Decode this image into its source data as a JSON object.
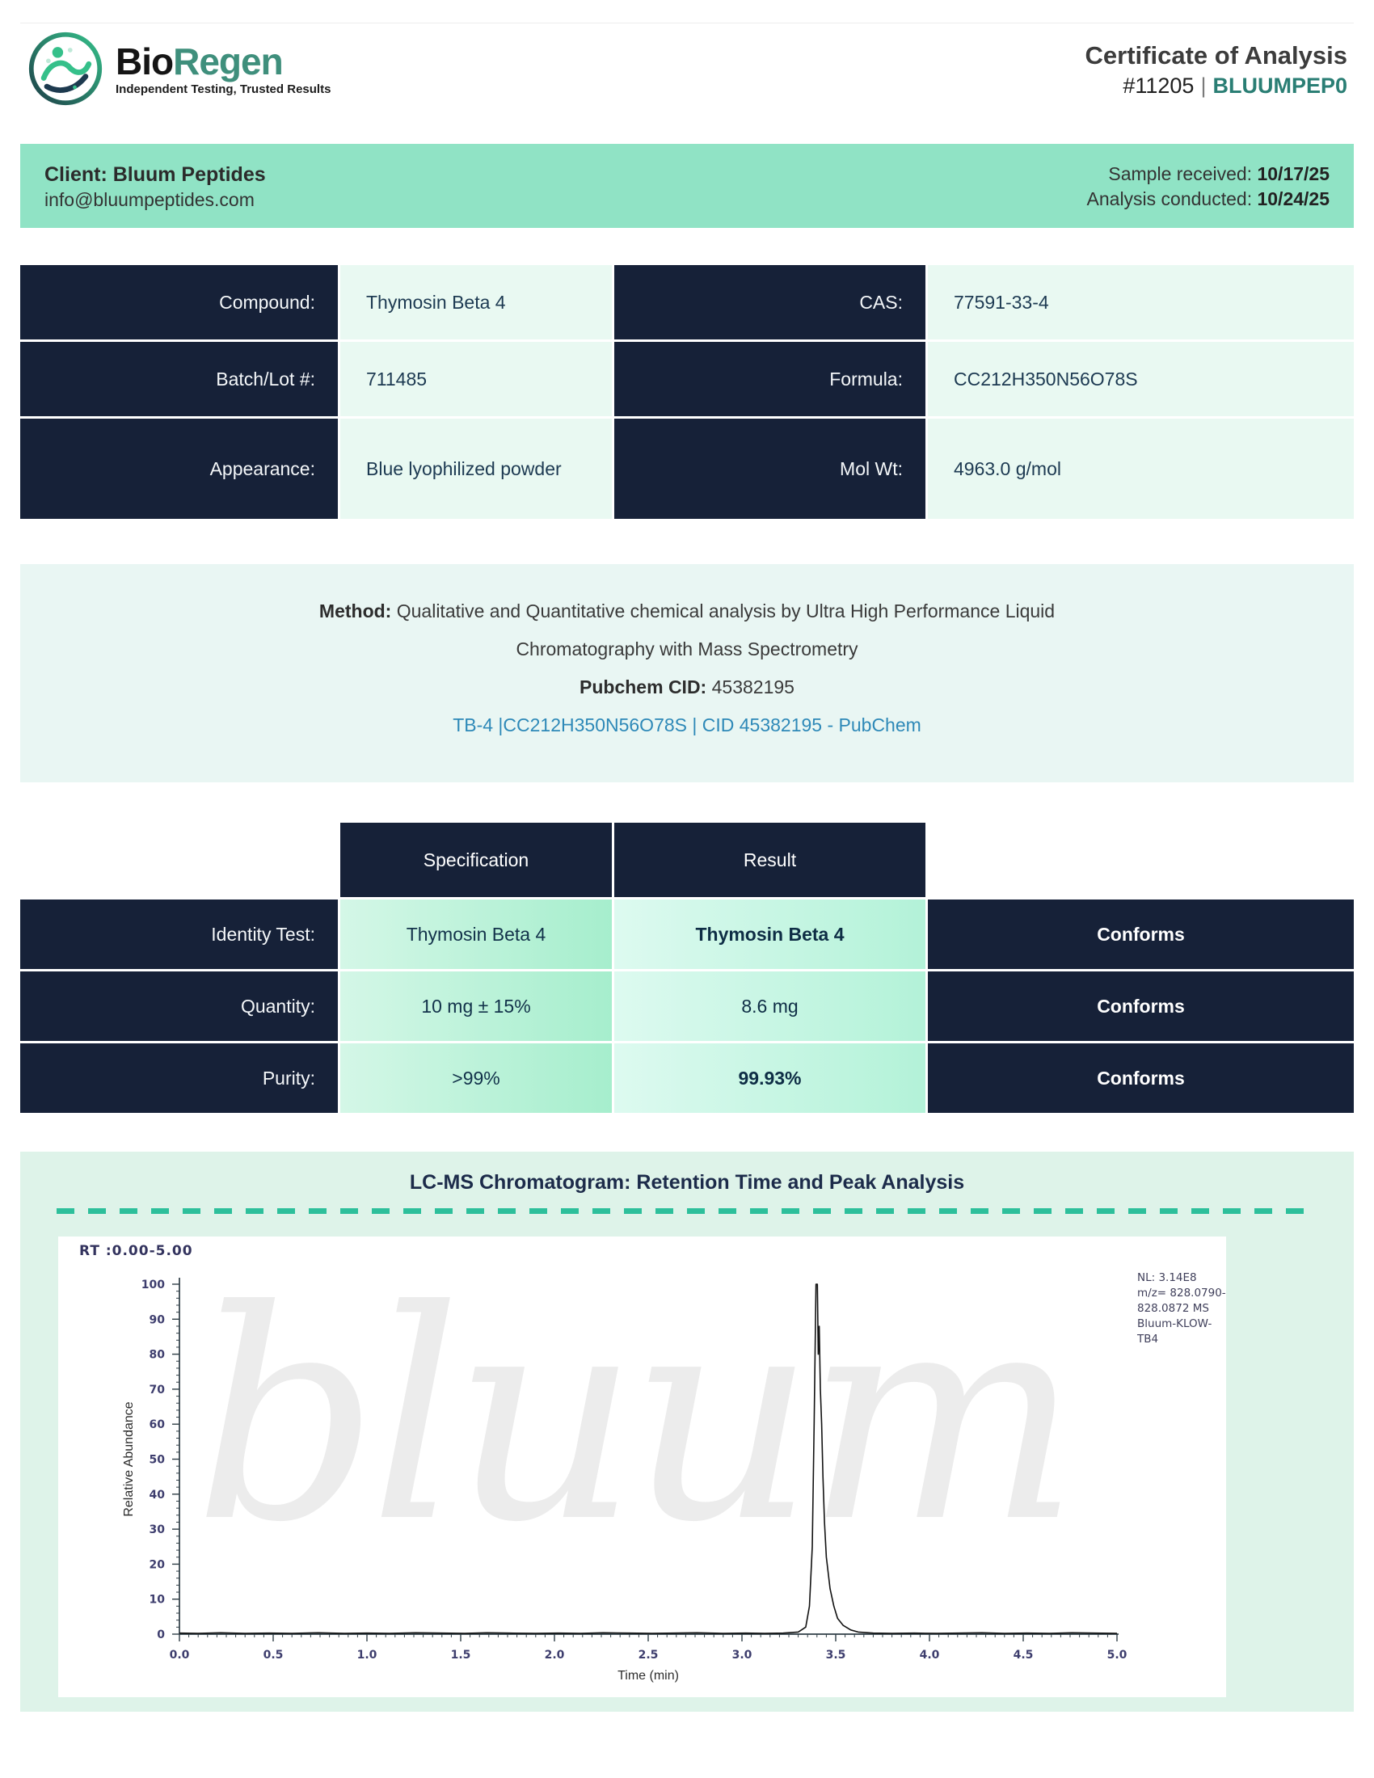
{
  "header": {
    "brand_bio": "Bio",
    "brand_regen": "Regen",
    "tagline": "Independent Testing, Trusted Results",
    "doc_title": "Certificate of Analysis",
    "doc_number": "#11205",
    "doc_sep": "|",
    "doc_code": "BLUUMPEP0"
  },
  "client_bar": {
    "client_name": "Client: Bluum Peptides",
    "client_email": "info@bluumpeptides.com",
    "sample_received_label": "Sample received: ",
    "sample_received_value": "10/17/25",
    "analysis_conducted_label": "Analysis conducted: ",
    "analysis_conducted_value": "10/24/25"
  },
  "compound_table": {
    "rows": [
      {
        "label_left": "Compound:",
        "value_left": "Thymosin Beta 4",
        "label_right": "CAS:",
        "value_right": "77591-33-4"
      },
      {
        "label_left": "Batch/Lot #:",
        "value_left": "711485",
        "label_right": "Formula:",
        "value_right": "CC212H350N56O78S"
      },
      {
        "label_left": "Appearance:",
        "value_left": "Blue lyophilized powder",
        "label_right": "Mol Wt:",
        "value_right": "4963.0 g/mol"
      }
    ]
  },
  "method": {
    "label": "Method:",
    "line1": " Qualitative and Quantitative chemical analysis by Ultra High Performance Liquid",
    "line2": "Chromatography with Mass Spectrometry",
    "cid_label": "Pubchem CID:",
    "cid_value": " 45382195",
    "link_text": "TB-4 |CC212H350N56O78S | CID 45382195 - PubChem"
  },
  "results_table": {
    "spec_header": "Specification",
    "result_header": "Result",
    "rows": [
      {
        "label": "Identity Test:",
        "spec": "Thymosin Beta 4",
        "result": "Thymosin Beta 4",
        "status": "Conforms"
      },
      {
        "label": "Quantity:",
        "spec": "10 mg ± 15%",
        "result": "8.6 mg",
        "status": "Conforms"
      },
      {
        "label": "Purity:",
        "spec": ">99%",
        "result": "99.93%",
        "status": "Conforms"
      }
    ]
  },
  "chromatogram": {
    "title": "LC-MS Chromatogram: Retention Time and Peak Analysis",
    "rt_label": "RT :0.00-5.00",
    "watermark": "bluum",
    "annotation_lines": [
      "NL: 3.14E8",
      "m/z= 828.0790-",
      "828.0872 MS",
      "Bluum-KLOW-TB4"
    ]
  },
  "chart_data": {
    "type": "line",
    "title": "LC-MS Chromatogram: Retention Time and Peak Analysis",
    "xlabel": "Time (min)",
    "ylabel": "Relative Abundance",
    "xlim": [
      0.0,
      5.0
    ],
    "ylim": [
      0,
      100
    ],
    "x_major_ticks": [
      0.0,
      0.5,
      1.0,
      1.5,
      2.0,
      2.5,
      3.0,
      3.5,
      4.0,
      4.5,
      5.0
    ],
    "y_major_ticks": [
      0,
      10,
      20,
      30,
      40,
      50,
      60,
      70,
      80,
      90,
      100
    ],
    "x_minor_step": 0.05,
    "y_minor_step": 2,
    "grid": false,
    "legend_position": "none",
    "rt_range": "RT :0.00-5.00",
    "peak_retention_time": 3.4,
    "peak_height_percent": 100,
    "nl_value": "3.14E8",
    "mz_range": "828.0790-828.0872",
    "sample_id": "Bluum-KLOW-TB4",
    "series": [
      {
        "name": "Bluum-KLOW-TB4",
        "points": [
          [
            0.0,
            0.3
          ],
          [
            0.1,
            0.2
          ],
          [
            0.22,
            0.4
          ],
          [
            0.35,
            0.2
          ],
          [
            0.48,
            0.3
          ],
          [
            0.6,
            0.2
          ],
          [
            0.74,
            0.4
          ],
          [
            0.88,
            0.2
          ],
          [
            1.0,
            0.3
          ],
          [
            1.12,
            0.2
          ],
          [
            1.26,
            0.4
          ],
          [
            1.4,
            0.3
          ],
          [
            1.52,
            0.2
          ],
          [
            1.64,
            0.4
          ],
          [
            1.76,
            0.3
          ],
          [
            1.9,
            0.2
          ],
          [
            2.02,
            0.3
          ],
          [
            2.14,
            0.2
          ],
          [
            2.26,
            0.4
          ],
          [
            2.4,
            0.3
          ],
          [
            2.52,
            0.2
          ],
          [
            2.64,
            0.3
          ],
          [
            2.76,
            0.4
          ],
          [
            2.9,
            0.2
          ],
          [
            3.02,
            0.3
          ],
          [
            3.12,
            0.2
          ],
          [
            3.22,
            0.3
          ],
          [
            3.3,
            0.6
          ],
          [
            3.34,
            2
          ],
          [
            3.36,
            8
          ],
          [
            3.375,
            25
          ],
          [
            3.385,
            60
          ],
          [
            3.395,
            100
          ],
          [
            3.402,
            100
          ],
          [
            3.407,
            80
          ],
          [
            3.412,
            88
          ],
          [
            3.418,
            70
          ],
          [
            3.425,
            60
          ],
          [
            3.432,
            45
          ],
          [
            3.44,
            32
          ],
          [
            3.45,
            22
          ],
          [
            3.47,
            13
          ],
          [
            3.49,
            8
          ],
          [
            3.51,
            4.5
          ],
          [
            3.54,
            2.5
          ],
          [
            3.58,
            1.2
          ],
          [
            3.62,
            0.6
          ],
          [
            3.7,
            0.3
          ],
          [
            3.8,
            0.2
          ],
          [
            3.92,
            0.3
          ],
          [
            4.04,
            0.2
          ],
          [
            4.16,
            0.3
          ],
          [
            4.28,
            0.4
          ],
          [
            4.4,
            0.2
          ],
          [
            4.52,
            0.3
          ],
          [
            4.64,
            0.2
          ],
          [
            4.76,
            0.4
          ],
          [
            4.88,
            0.3
          ],
          [
            5.0,
            0.2
          ]
        ]
      }
    ]
  }
}
